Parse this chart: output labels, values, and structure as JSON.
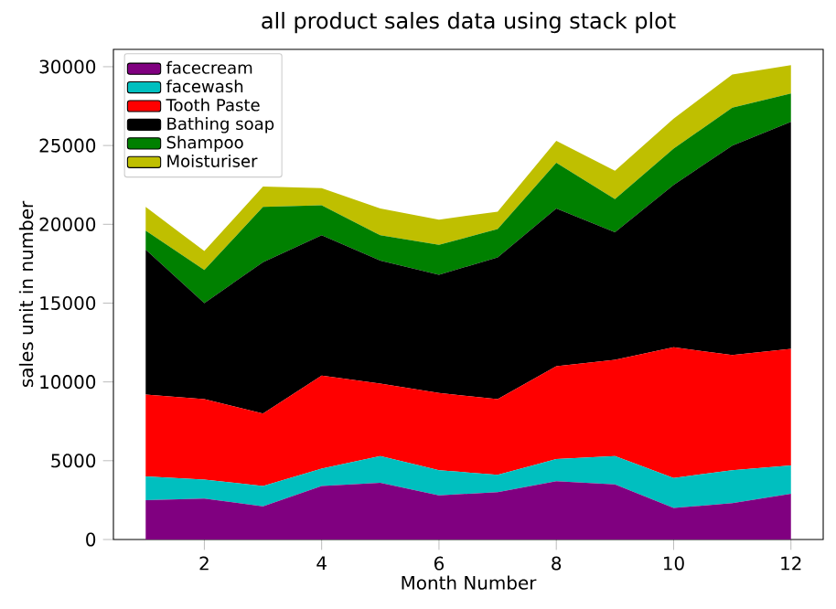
{
  "chart_data": {
    "type": "area",
    "title": "all product sales data using stack plot",
    "xlabel": "Month Number",
    "ylabel": "sales unit in number",
    "stacked": true,
    "legend": "top left",
    "x": [
      1,
      2,
      3,
      4,
      5,
      6,
      7,
      8,
      9,
      10,
      11,
      12
    ],
    "series": [
      {
        "name": "facecream",
        "color": "#800080",
        "values": [
          2500,
          2600,
          2100,
          3400,
          3600,
          2800,
          3000,
          3700,
          3500,
          2000,
          2300,
          2900
        ]
      },
      {
        "name": "facewash",
        "color": "#00bfbf",
        "values": [
          1500,
          1200,
          1300,
          1100,
          1700,
          1600,
          1100,
          1400,
          1800,
          1900,
          2100,
          1800
        ]
      },
      {
        "name": "Tooth Paste",
        "color": "#ff0000",
        "values": [
          5200,
          5100,
          4600,
          5900,
          4600,
          4900,
          4800,
          5900,
          6100,
          8300,
          7300,
          7400
        ]
      },
      {
        "name": "Bathing soap",
        "color": "#000000",
        "values": [
          9200,
          6100,
          9600,
          8900,
          7800,
          7500,
          9000,
          10000,
          8100,
          10300,
          13300,
          14400
        ]
      },
      {
        "name": "Shampoo",
        "color": "#008000",
        "values": [
          1200,
          2100,
          3500,
          1900,
          1600,
          1900,
          1800,
          2900,
          2100,
          2300,
          2400,
          1800
        ]
      },
      {
        "name": "Moisturiser",
        "color": "#bfbf00",
        "values": [
          1500,
          1200,
          1300,
          1100,
          1700,
          1600,
          1100,
          1400,
          1800,
          1900,
          2100,
          1800
        ]
      }
    ],
    "xlim": [
      0.45,
      12.55
    ],
    "ylim": [
      0,
      31100
    ],
    "xticks": [
      2,
      4,
      6,
      8,
      10,
      12
    ],
    "yticks": [
      0,
      5000,
      10000,
      15000,
      20000,
      25000,
      30000
    ]
  }
}
